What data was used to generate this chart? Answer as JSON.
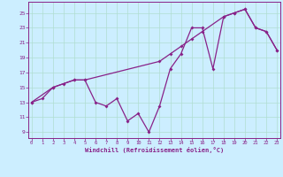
{
  "xlabel": "Windchill (Refroidissement éolien,°C)",
  "background_color": "#cceeff",
  "grid_color": "#b0ddd0",
  "line_color": "#882288",
  "x_ticks": [
    0,
    1,
    2,
    3,
    4,
    5,
    6,
    7,
    8,
    9,
    10,
    11,
    12,
    13,
    14,
    15,
    16,
    17,
    18,
    19,
    20,
    21,
    22,
    23
  ],
  "y_ticks": [
    9,
    11,
    13,
    15,
    17,
    19,
    21,
    23,
    25
  ],
  "xlim": [
    -0.3,
    23.3
  ],
  "ylim": [
    8.2,
    26.5
  ],
  "series1_x": [
    0,
    1,
    2,
    3,
    4,
    5,
    6,
    7,
    8,
    9,
    10,
    11,
    12,
    13,
    14,
    15,
    16,
    17,
    18,
    19,
    20,
    21,
    22,
    23
  ],
  "series1_y": [
    13.0,
    13.5,
    15.0,
    15.5,
    16.0,
    16.0,
    13.0,
    12.5,
    13.5,
    10.5,
    11.5,
    9.0,
    12.5,
    17.5,
    19.5,
    23.0,
    23.0,
    17.5,
    24.5,
    25.0,
    25.5,
    23.0,
    22.5,
    20.0
  ],
  "series2_x": [
    0,
    2,
    4,
    5,
    12,
    13,
    14,
    15,
    16,
    18,
    19,
    20,
    21,
    22,
    23
  ],
  "series2_y": [
    13.0,
    15.0,
    16.0,
    16.0,
    18.5,
    19.5,
    20.5,
    21.5,
    22.5,
    24.5,
    25.0,
    25.5,
    23.0,
    22.5,
    20.0
  ]
}
